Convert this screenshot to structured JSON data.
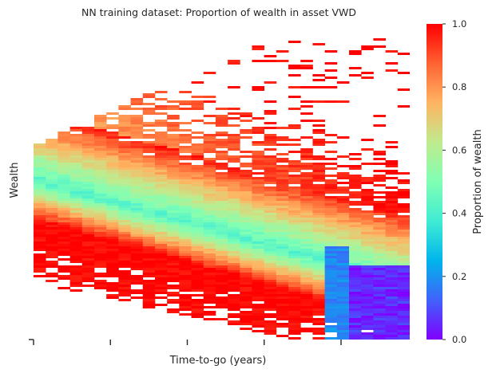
{
  "chart_data": {
    "type": "heatmap",
    "title": "NN training dataset: Proportion of wealth in asset VWD",
    "xlabel": "Time-to-go (years)",
    "ylabel": "Wealth",
    "colorbar": {
      "label": "Proportion of wealth",
      "range": [
        0.0,
        1.0
      ],
      "ticks": [
        "0.0",
        "0.2",
        "0.4",
        "0.6",
        "0.8",
        "1.0"
      ],
      "colormap": "rainbow"
    },
    "x_tick_count": 5,
    "x_tick_labels": [],
    "y_tick_labels": [],
    "columns": 31,
    "pattern": "Proportion in VWD is high (~1.0) at top rows with sparse samples, transitions through 0.6-0.4 in a diagonal band descending from upper-left to lower-right, reaching ~0.8-1.0 at lower-middle and ~0.0-0.1 at the lower-right corner; white cells indicate no data."
  }
}
